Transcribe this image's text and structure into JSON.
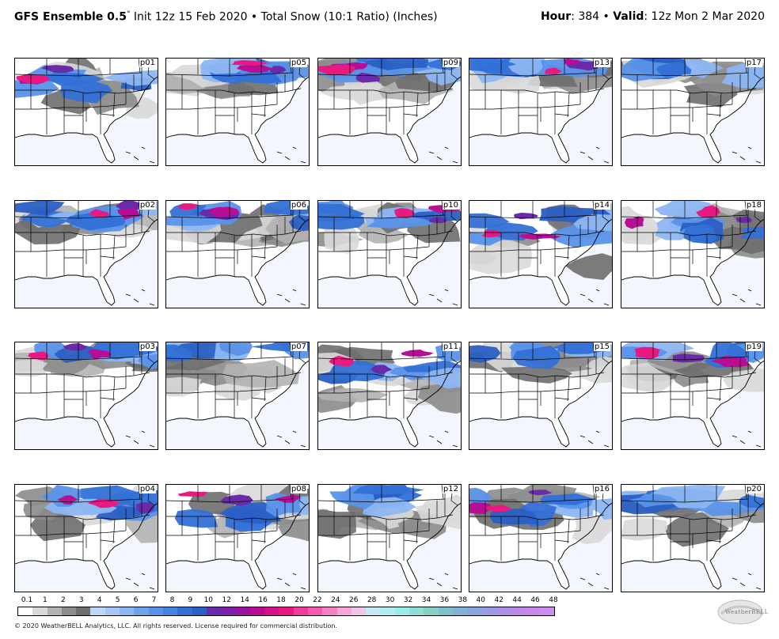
{
  "header": {
    "model": "GFS Ensemble 0.5",
    "degree": "°",
    "init": " Init 12z 15 Feb 2020",
    "bullet": " • ",
    "product": "Total Snow (10:1 Ratio) (Inches)",
    "hour_label": "Hour",
    "hour_value": ": 384",
    "valid_label": "Valid",
    "valid_value": ": 12z Mon 2 Mar 2020"
  },
  "panels": [
    "p01",
    "p05",
    "p09",
    "p13",
    "p17",
    "p02",
    "p06",
    "p10",
    "p14",
    "p18",
    "p03",
    "p07",
    "p11",
    "p15",
    "p19",
    "p04",
    "p08",
    "p12",
    "p16",
    "p20"
  ],
  "scale": {
    "labels": [
      "0.1",
      "1",
      "2",
      "3",
      "4",
      "5",
      "6",
      "7",
      "8",
      "9",
      "10",
      "12",
      "14",
      "16",
      "18",
      "20",
      "22",
      "24",
      "26",
      "28",
      "30",
      "32",
      "34",
      "36",
      "38",
      "40",
      "42",
      "44",
      "46",
      "48"
    ],
    "colors": [
      "#ffffff",
      "#d9d9d9",
      "#b3b3b3",
      "#8c8c8c",
      "#6e6e6e",
      "#bcd6f7",
      "#a5c6f5",
      "#8db6f2",
      "#6fa3ee",
      "#5a92e9",
      "#4682e0",
      "#3370d6",
      "#2a5fc4",
      "#6a2ba8",
      "#7d1fa8",
      "#99139f",
      "#b80d95",
      "#d4108b",
      "#e81a82",
      "#f03c9a",
      "#f55cb0",
      "#f77fc4",
      "#f7a6d6",
      "#f0c6e6",
      "#c9e9f2",
      "#b0eef0",
      "#98ecea",
      "#8fded6",
      "#88cfc4",
      "#80c0c8",
      "#82b2d4",
      "#8aa6df",
      "#9a9ae6",
      "#ab90ea",
      "#bb88ec",
      "#c688ee",
      "#cd8cf0"
    ],
    "unit_steps": "0.1 to 48"
  },
  "footer": {
    "copyright": "© 2020 WeatherBELL Analytics, LLC. All rights reserved. License required for commercial distribution.",
    "logo_text": "WeatherBELL"
  }
}
